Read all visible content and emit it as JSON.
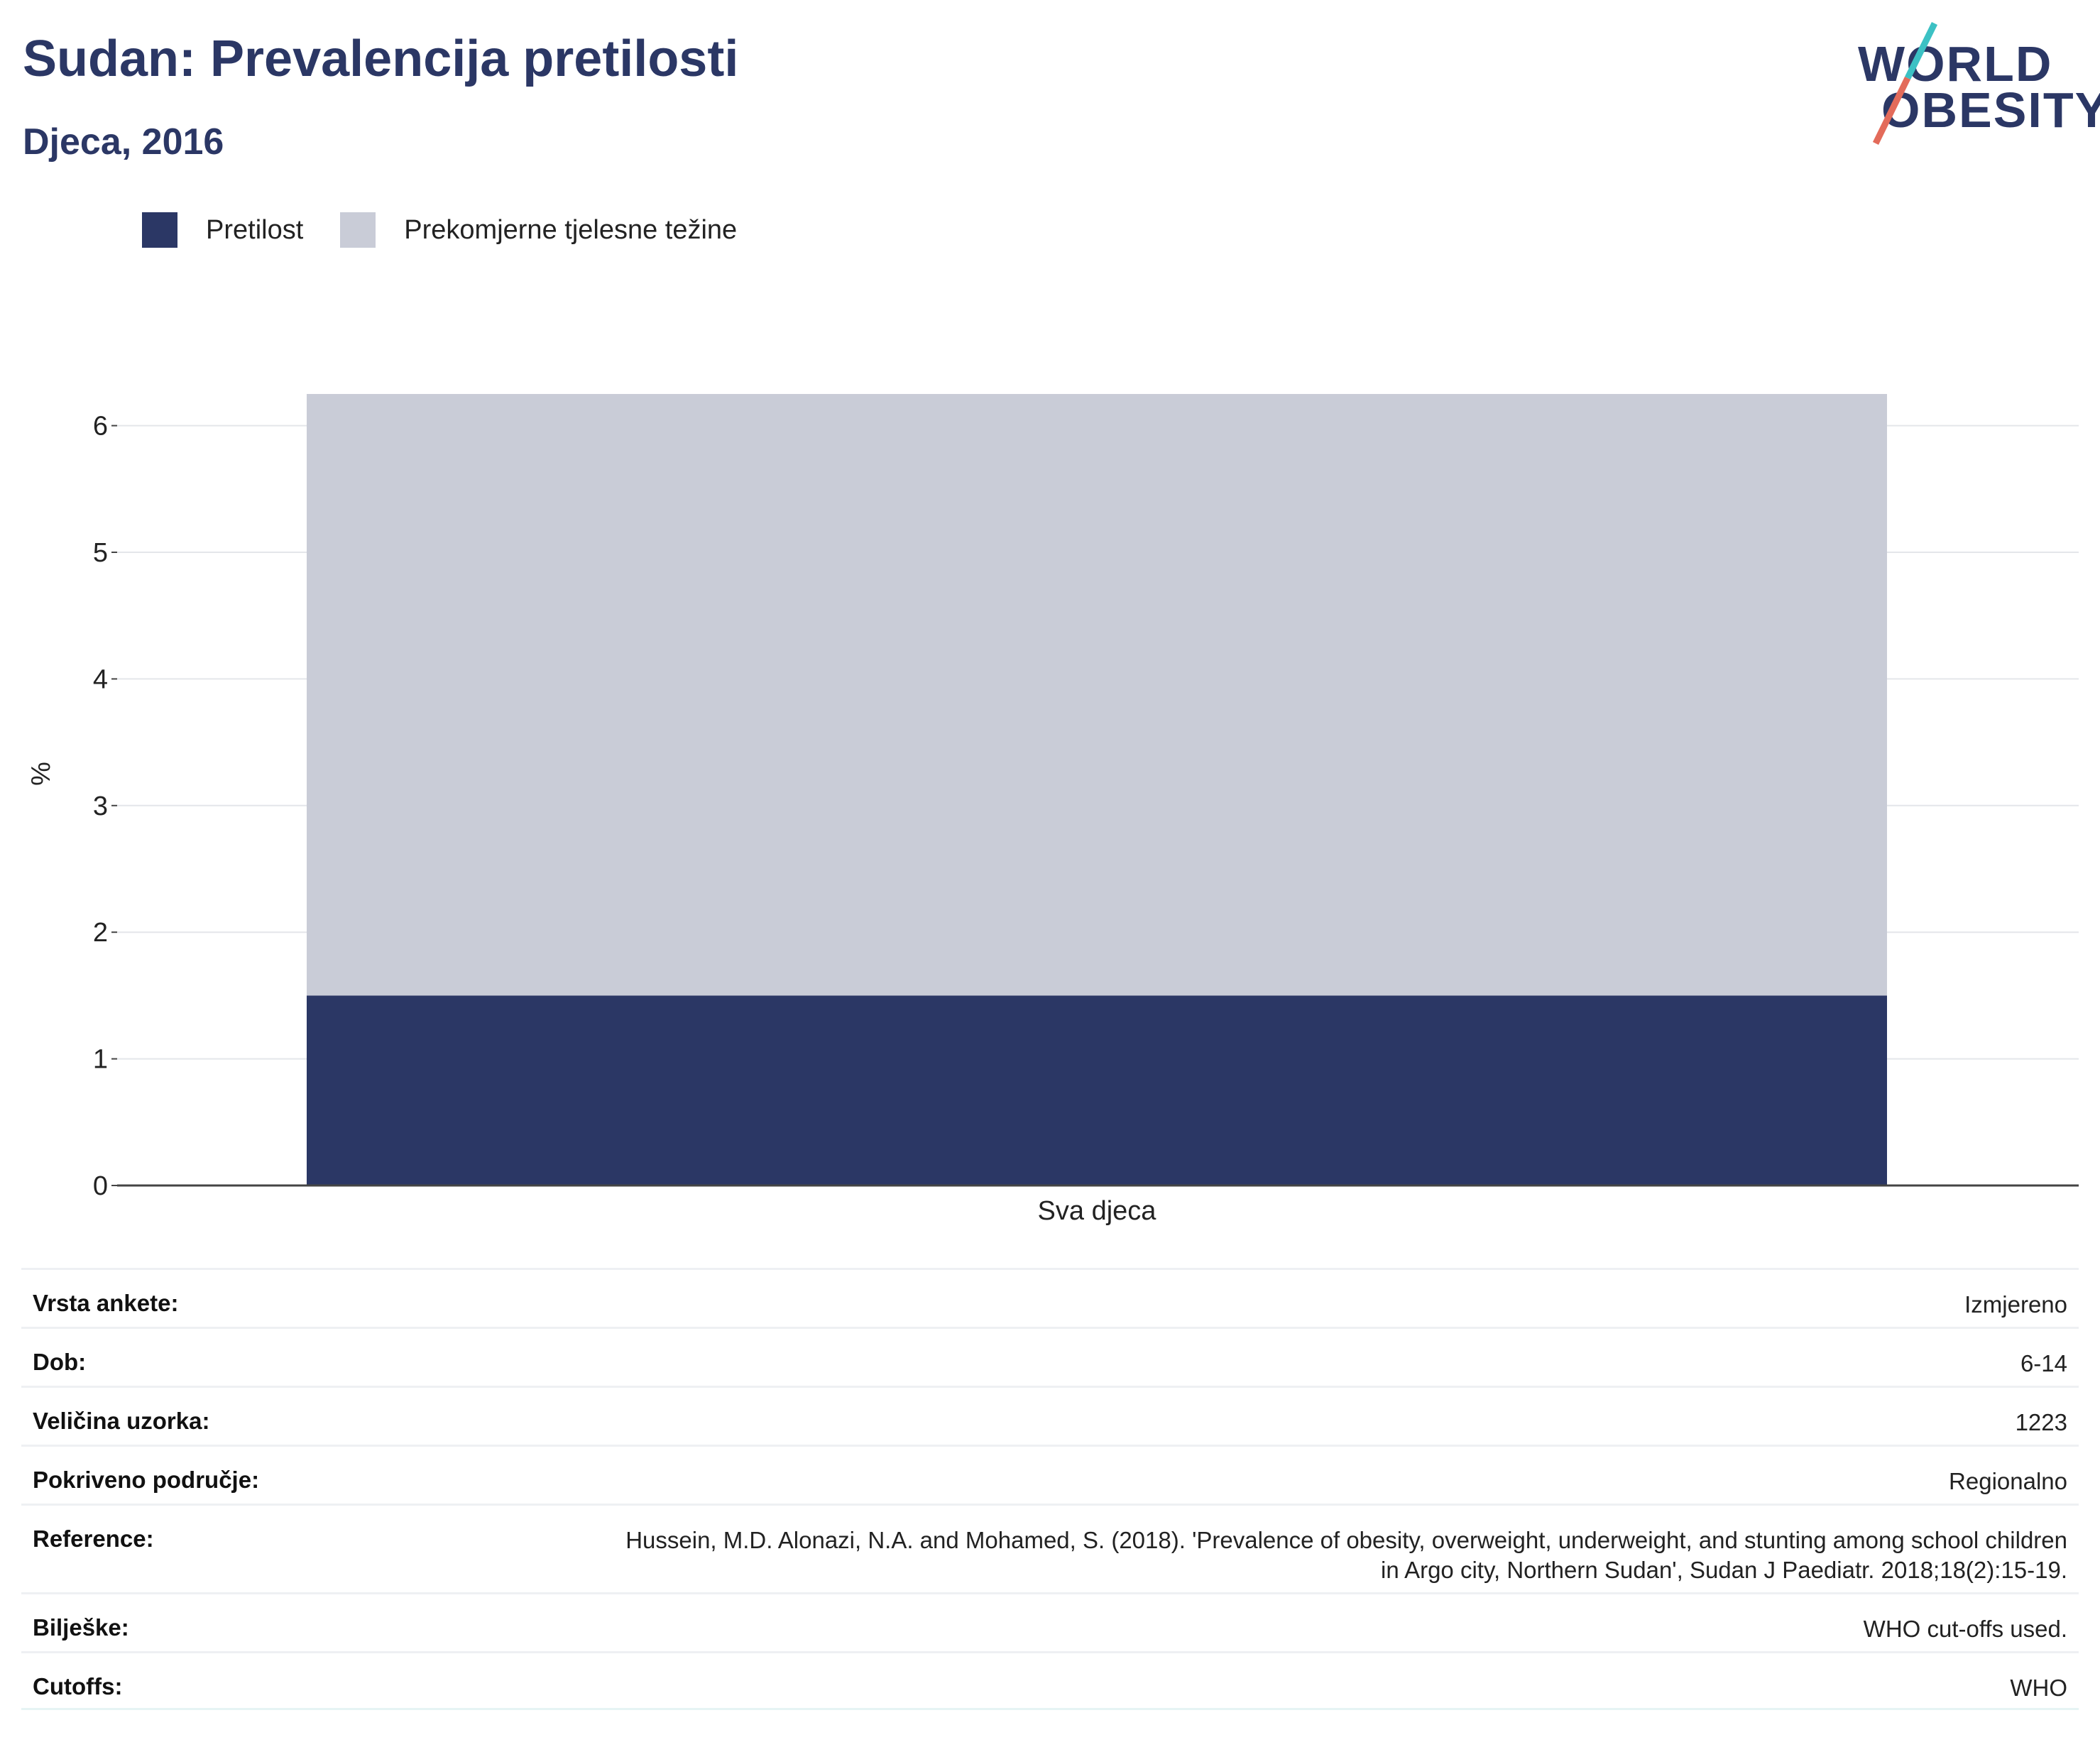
{
  "header": {
    "title": "Sudan: Prevalencija pretilosti",
    "subtitle": "Djeca, 2016",
    "logo_line1": "WORLD",
    "logo_line2": "OBESITY"
  },
  "colors": {
    "obesity": "#2b3765",
    "overweight": "#c9ccd7",
    "logo_teal": "#3cc1c4",
    "logo_coral": "#e36b5a"
  },
  "chart_data": {
    "type": "bar",
    "stacked": true,
    "categories": [
      "Sva djeca"
    ],
    "series": [
      {
        "name": "Pretilost",
        "values": [
          1.5
        ]
      },
      {
        "name": "Prekomjerne tjelesne težine",
        "values": [
          4.75
        ]
      }
    ],
    "ylabel": "%",
    "xlabel": "",
    "ylim": [
      0,
      6.3
    ],
    "yticks": [
      0,
      1,
      2,
      3,
      4,
      5,
      6
    ],
    "grid": true,
    "legend_position": "top-left"
  },
  "meta": [
    {
      "key": "Vrsta ankete:",
      "value": "Izmjereno"
    },
    {
      "key": "Dob:",
      "value": "6-14"
    },
    {
      "key": "Veličina uzorka:",
      "value": "1223"
    },
    {
      "key": "Pokriveno područje:",
      "value": "Regionalno"
    },
    {
      "key": "Reference:",
      "value": "Hussein, M.D. Alonazi, N.A. and Mohamed, S. (2018). 'Prevalence of obesity, overweight, underweight, and stunting among school children in Argo city, Northern Sudan', Sudan J Paediatr. 2018;18(2):15-19."
    },
    {
      "key": "Bilješke:",
      "value": "WHO cut-offs used."
    },
    {
      "key": "Cutoffs:",
      "value": "WHO"
    }
  ]
}
